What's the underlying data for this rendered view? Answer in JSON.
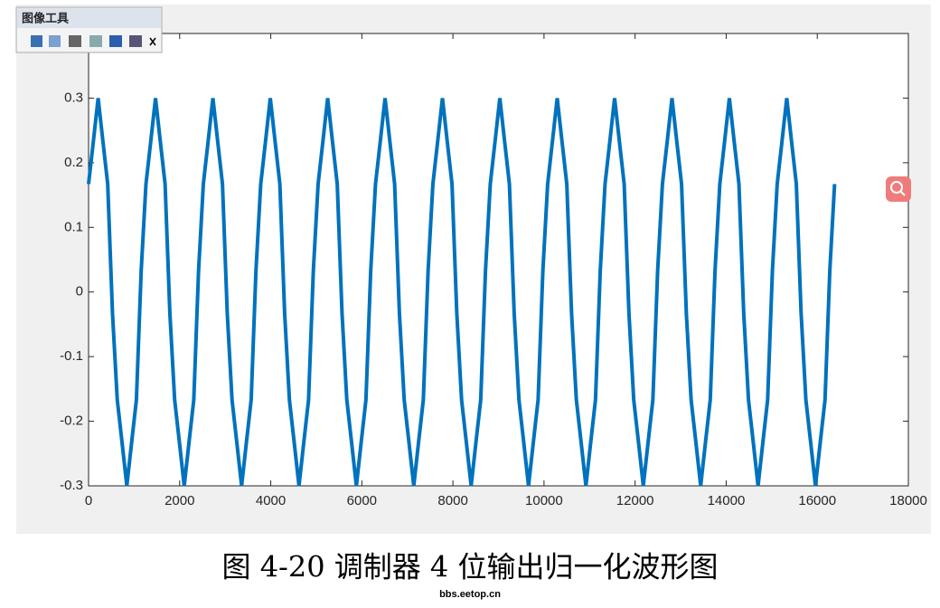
{
  "toolbar": {
    "title": "图像工具"
  },
  "chart_data": {
    "type": "line",
    "x": [
      0,
      105,
      210,
      315,
      420,
      525,
      630,
      735,
      840,
      945,
      1050,
      1155,
      1260,
      1365,
      1470,
      1575,
      1680,
      1785,
      1890,
      1995,
      2100,
      2205,
      2310,
      2415,
      2520,
      2625,
      2730,
      2835,
      2940,
      3045,
      3150,
      3255,
      3360,
      3465,
      3570,
      3675,
      3780,
      3885,
      3990,
      4095,
      4200,
      4305,
      4410,
      4515,
      4620,
      4725,
      4830,
      4935,
      5040,
      5145,
      5250,
      5355,
      5460,
      5565,
      5670,
      5775,
      5880,
      5985,
      6090,
      6195,
      6300,
      6405,
      6510,
      6615,
      6720,
      6825,
      6930,
      7035,
      7140,
      7245,
      7350,
      7455,
      7560,
      7665,
      7770,
      7875,
      7980,
      8085,
      8190,
      8295,
      8400,
      8505,
      8610,
      8715,
      8820,
      8925,
      9030,
      9135,
      9240,
      9345,
      9450,
      9555,
      9660,
      9765,
      9870,
      9975,
      10080,
      10185,
      10290,
      10395,
      10500,
      10605,
      10710,
      10815,
      10920,
      11025,
      11130,
      11235,
      11340,
      11445,
      11550,
      11655,
      11760,
      11865,
      11970,
      12075,
      12180,
      12285,
      12390,
      12495,
      12600,
      12705,
      12810,
      12915,
      13020,
      13125,
      13230,
      13335,
      13440,
      13545,
      13650,
      13755,
      13860,
      13965,
      14070,
      14175,
      14280,
      14385,
      14490,
      14595,
      14700,
      14805,
      14910,
      15015,
      15120,
      15225,
      15330,
      15435,
      15540,
      15645,
      15750,
      15855,
      15960,
      16065,
      16170,
      16275,
      16380
    ],
    "series": [
      {
        "color": "#0072bd",
        "values": [
          0.167,
          0.233,
          0.3,
          0.233,
          0.167,
          -0.033,
          -0.167,
          -0.233,
          -0.3,
          -0.233,
          -0.167,
          0.033,
          0.167,
          0.233,
          0.3,
          0.233,
          0.167,
          -0.033,
          -0.167,
          -0.233,
          -0.3,
          -0.233,
          -0.167,
          0.033,
          0.167,
          0.233,
          0.3,
          0.233,
          0.167,
          -0.033,
          -0.167,
          -0.233,
          -0.3,
          -0.233,
          -0.167,
          0.033,
          0.167,
          0.233,
          0.3,
          0.233,
          0.167,
          -0.033,
          -0.167,
          -0.233,
          -0.3,
          -0.233,
          -0.167,
          0.033,
          0.167,
          0.233,
          0.3,
          0.233,
          0.167,
          -0.033,
          -0.167,
          -0.233,
          -0.3,
          -0.233,
          -0.167,
          0.033,
          0.167,
          0.233,
          0.3,
          0.233,
          0.167,
          -0.033,
          -0.167,
          -0.233,
          -0.3,
          -0.233,
          -0.167,
          0.033,
          0.167,
          0.233,
          0.3,
          0.233,
          0.167,
          -0.033,
          -0.167,
          -0.233,
          -0.3,
          -0.233,
          -0.167,
          0.033,
          0.167,
          0.233,
          0.3,
          0.233,
          0.167,
          -0.033,
          -0.167,
          -0.233,
          -0.3,
          -0.233,
          -0.167,
          0.033,
          0.167,
          0.233,
          0.3,
          0.233,
          0.167,
          -0.033,
          -0.167,
          -0.233,
          -0.3,
          -0.233,
          -0.167,
          0.033,
          0.167,
          0.233,
          0.3,
          0.233,
          0.167,
          -0.033,
          -0.167,
          -0.233,
          -0.3,
          -0.233,
          -0.167,
          0.033,
          0.167,
          0.233,
          0.3,
          0.233,
          0.167,
          -0.033,
          -0.167,
          -0.233,
          -0.3,
          -0.233,
          -0.167,
          0.033,
          0.167,
          0.233,
          0.3,
          0.233,
          0.167,
          -0.033,
          -0.167,
          -0.233,
          -0.3,
          -0.233,
          -0.167,
          0.033,
          0.167,
          0.233,
          0.3,
          0.233,
          0.167,
          -0.033,
          -0.167,
          -0.233,
          -0.3,
          -0.233,
          -0.167,
          0.033,
          0.167
        ]
      }
    ],
    "xlim": [
      0,
      18000
    ],
    "xticks": [
      0,
      2000,
      4000,
      6000,
      8000,
      10000,
      12000,
      14000,
      16000,
      18000
    ],
    "ylim": [
      -0.3,
      0.4
    ],
    "yticks": [
      -0.3,
      -0.2,
      -0.1,
      0,
      0.1,
      0.2,
      0.3
    ]
  },
  "caption": "图 4-20  调制器 4 位输出归一化波形图",
  "watermark": "bbs.eetop.cn"
}
